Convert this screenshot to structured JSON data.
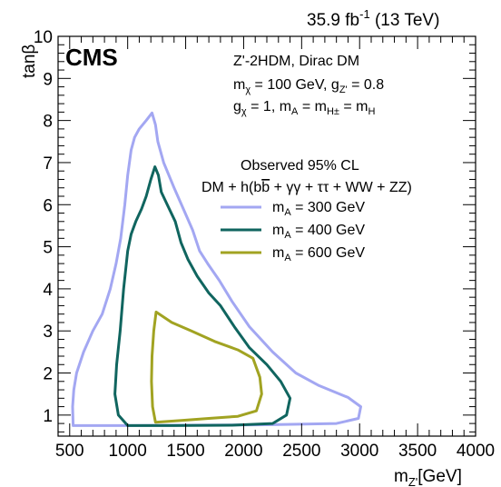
{
  "chart_data": {
    "type": "line",
    "experiment_label": "CMS",
    "lumi_label_main": "35.9 fb",
    "lumi_label_sup": "-1",
    "lumi_label_energy": " (13 TeV)",
    "xlabel_main": "m",
    "xlabel_sub": "Z'",
    "xlabel_unit": "[GeV]",
    "ylabel": "tanβ",
    "xlim": [
      400,
      4000
    ],
    "ylim": [
      0.5,
      10
    ],
    "x_ticks": [
      "500",
      "1000",
      "1500",
      "2000",
      "2500",
      "3000",
      "3500",
      "4000"
    ],
    "y_ticks": [
      "1",
      "2",
      "3",
      "4",
      "5",
      "6",
      "7",
      "8",
      "9",
      "10"
    ],
    "model_lines": {
      "line1": "Z'-2HDM, Dirac DM",
      "line2_a": "m",
      "line2_a_sub": "χ",
      "line2_b": " = 100 GeV, g",
      "line2_b_sub": "Z'",
      "line2_c": " = 0.8",
      "line3_a": "g",
      "line3_a_sub": "χ",
      "line3_b": " = 1, m",
      "line3_b_sub": "A",
      "line3_c": " = m",
      "line3_c_sub": "H±",
      "line3_d": " = m",
      "line3_d_sub": "H"
    },
    "legend_title_1": "Observed 95% CL",
    "legend_title_2_a": "DM + h(b",
    "legend_title_2_b": "b",
    "legend_title_2_c": " + γγ + ττ + WW + ZZ)",
    "series": [
      {
        "legend_a": "m",
        "legend_sub": "A",
        "legend_b": " = 300 GeV",
        "color": "#a3a7f2",
        "points": [
          [
            530,
            0.75
          ],
          [
            525,
            1.2
          ],
          [
            535,
            1.6
          ],
          [
            560,
            2.0
          ],
          [
            620,
            2.5
          ],
          [
            700,
            3.0
          ],
          [
            780,
            3.4
          ],
          [
            850,
            4.0
          ],
          [
            900,
            4.6
          ],
          [
            940,
            5.2
          ],
          [
            975,
            6.0
          ],
          [
            1000,
            6.7
          ],
          [
            1030,
            7.3
          ],
          [
            1060,
            7.6
          ],
          [
            1100,
            7.8
          ],
          [
            1160,
            8.0
          ],
          [
            1210,
            8.18
          ],
          [
            1240,
            7.9
          ],
          [
            1260,
            7.5
          ],
          [
            1310,
            7.0
          ],
          [
            1400,
            6.4
          ],
          [
            1480,
            5.9
          ],
          [
            1560,
            5.4
          ],
          [
            1620,
            4.9
          ],
          [
            1690,
            4.6
          ],
          [
            1790,
            4.2
          ],
          [
            1900,
            3.7
          ],
          [
            2050,
            3.1
          ],
          [
            2250,
            2.5
          ],
          [
            2450,
            2.0
          ],
          [
            2650,
            1.7
          ],
          [
            2900,
            1.42
          ],
          [
            3010,
            1.2
          ],
          [
            2990,
            0.92
          ],
          [
            2800,
            0.8
          ],
          [
            2200,
            0.77
          ],
          [
            1500,
            0.76
          ],
          [
            1000,
            0.75
          ],
          [
            700,
            0.75
          ],
          [
            530,
            0.75
          ]
        ]
      },
      {
        "legend_a": "m",
        "legend_sub": "A",
        "legend_b": " = 400 GeV",
        "color": "#10655f",
        "points": [
          [
            1000,
            0.75
          ],
          [
            920,
            1.0
          ],
          [
            890,
            1.5
          ],
          [
            905,
            2.2
          ],
          [
            935,
            3.0
          ],
          [
            965,
            4.0
          ],
          [
            1000,
            4.9
          ],
          [
            1030,
            5.3
          ],
          [
            1070,
            5.6
          ],
          [
            1120,
            5.9
          ],
          [
            1160,
            6.2
          ],
          [
            1200,
            6.6
          ],
          [
            1235,
            6.9
          ],
          [
            1265,
            6.7
          ],
          [
            1290,
            6.3
          ],
          [
            1350,
            5.95
          ],
          [
            1410,
            5.6
          ],
          [
            1460,
            5.1
          ],
          [
            1520,
            4.7
          ],
          [
            1600,
            4.3
          ],
          [
            1700,
            3.9
          ],
          [
            1800,
            3.6
          ],
          [
            1920,
            3.1
          ],
          [
            2050,
            2.6
          ],
          [
            2200,
            2.2
          ],
          [
            2320,
            1.8
          ],
          [
            2400,
            1.4
          ],
          [
            2370,
            1.0
          ],
          [
            2250,
            0.8
          ],
          [
            1900,
            0.76
          ],
          [
            1400,
            0.75
          ],
          [
            1000,
            0.75
          ]
        ]
      },
      {
        "legend_a": "m",
        "legend_sub": "A",
        "legend_b": " = 600 GeV",
        "color": "#a1a322",
        "points": [
          [
            1240,
            0.83
          ],
          [
            1215,
            1.2
          ],
          [
            1205,
            1.8
          ],
          [
            1210,
            2.4
          ],
          [
            1225,
            3.0
          ],
          [
            1245,
            3.45
          ],
          [
            1380,
            3.2
          ],
          [
            1550,
            3.0
          ],
          [
            1750,
            2.75
          ],
          [
            1950,
            2.55
          ],
          [
            2080,
            2.35
          ],
          [
            2140,
            1.9
          ],
          [
            2155,
            1.5
          ],
          [
            2110,
            1.1
          ],
          [
            1950,
            0.97
          ],
          [
            1700,
            0.92
          ],
          [
            1450,
            0.87
          ],
          [
            1240,
            0.83
          ]
        ]
      }
    ]
  }
}
